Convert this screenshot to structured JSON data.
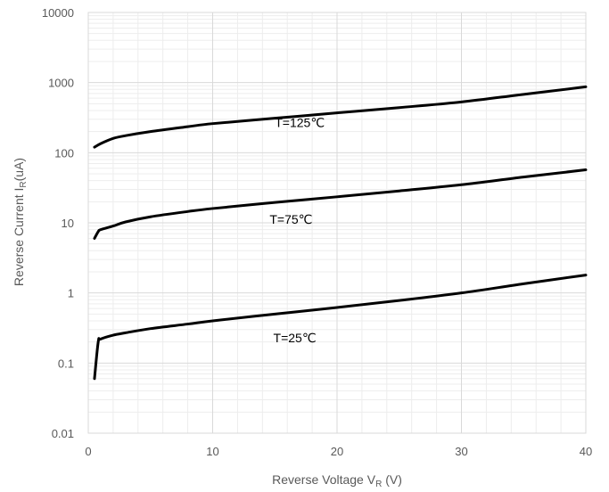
{
  "chart_data": {
    "type": "line",
    "xlabel": "Reverse Voltage V",
    "xlabel_sub": "R",
    "xlabel_suffix": " (V)",
    "ylabel": "Reverse Current I",
    "ylabel_sub": "R",
    "ylabel_suffix": "(uA)",
    "xlim": [
      0,
      40
    ],
    "ylim": [
      0.01,
      10000
    ],
    "yscale": "log",
    "grid": true,
    "x_ticks": [
      "0",
      "10",
      "20",
      "30",
      "40"
    ],
    "y_ticks": [
      "0.01",
      "0.1",
      "1",
      "10",
      "100",
      "1000",
      "10000"
    ],
    "series": [
      {
        "name": "T=125℃",
        "x": [
          0.5,
          1,
          2,
          3,
          5,
          8,
          10,
          15,
          20,
          25,
          30,
          35,
          40
        ],
        "y": [
          120,
          135,
          160,
          175,
          200,
          235,
          260,
          310,
          370,
          440,
          530,
          680,
          870
        ]
      },
      {
        "name": "T=75℃",
        "x": [
          0.5,
          0.8,
          1,
          2,
          3,
          5,
          8,
          10,
          15,
          20,
          25,
          30,
          35,
          40
        ],
        "y": [
          6,
          7.5,
          8,
          9,
          10.3,
          12.2,
          14.5,
          16,
          19.5,
          23.5,
          28.5,
          35,
          45,
          57
        ]
      },
      {
        "name": "T=25℃",
        "x": [
          0.5,
          0.8,
          1,
          2,
          3,
          5,
          8,
          10,
          15,
          20,
          25,
          30,
          35,
          40
        ],
        "y": [
          0.06,
          0.2,
          0.22,
          0.25,
          0.27,
          0.31,
          0.36,
          0.4,
          0.5,
          0.62,
          0.78,
          1.0,
          1.35,
          1.8
        ]
      }
    ],
    "annotations": [
      {
        "text": "T=125℃",
        "x": 17,
        "y": 270
      },
      {
        "text": "T=75℃",
        "x": 16.3,
        "y": 11.2
      },
      {
        "text": "T=25℃",
        "x": 16.6,
        "y": 0.23
      }
    ],
    "line_color": "#000000",
    "grid_color": "#d9d9d9",
    "text_color": "#595959"
  }
}
